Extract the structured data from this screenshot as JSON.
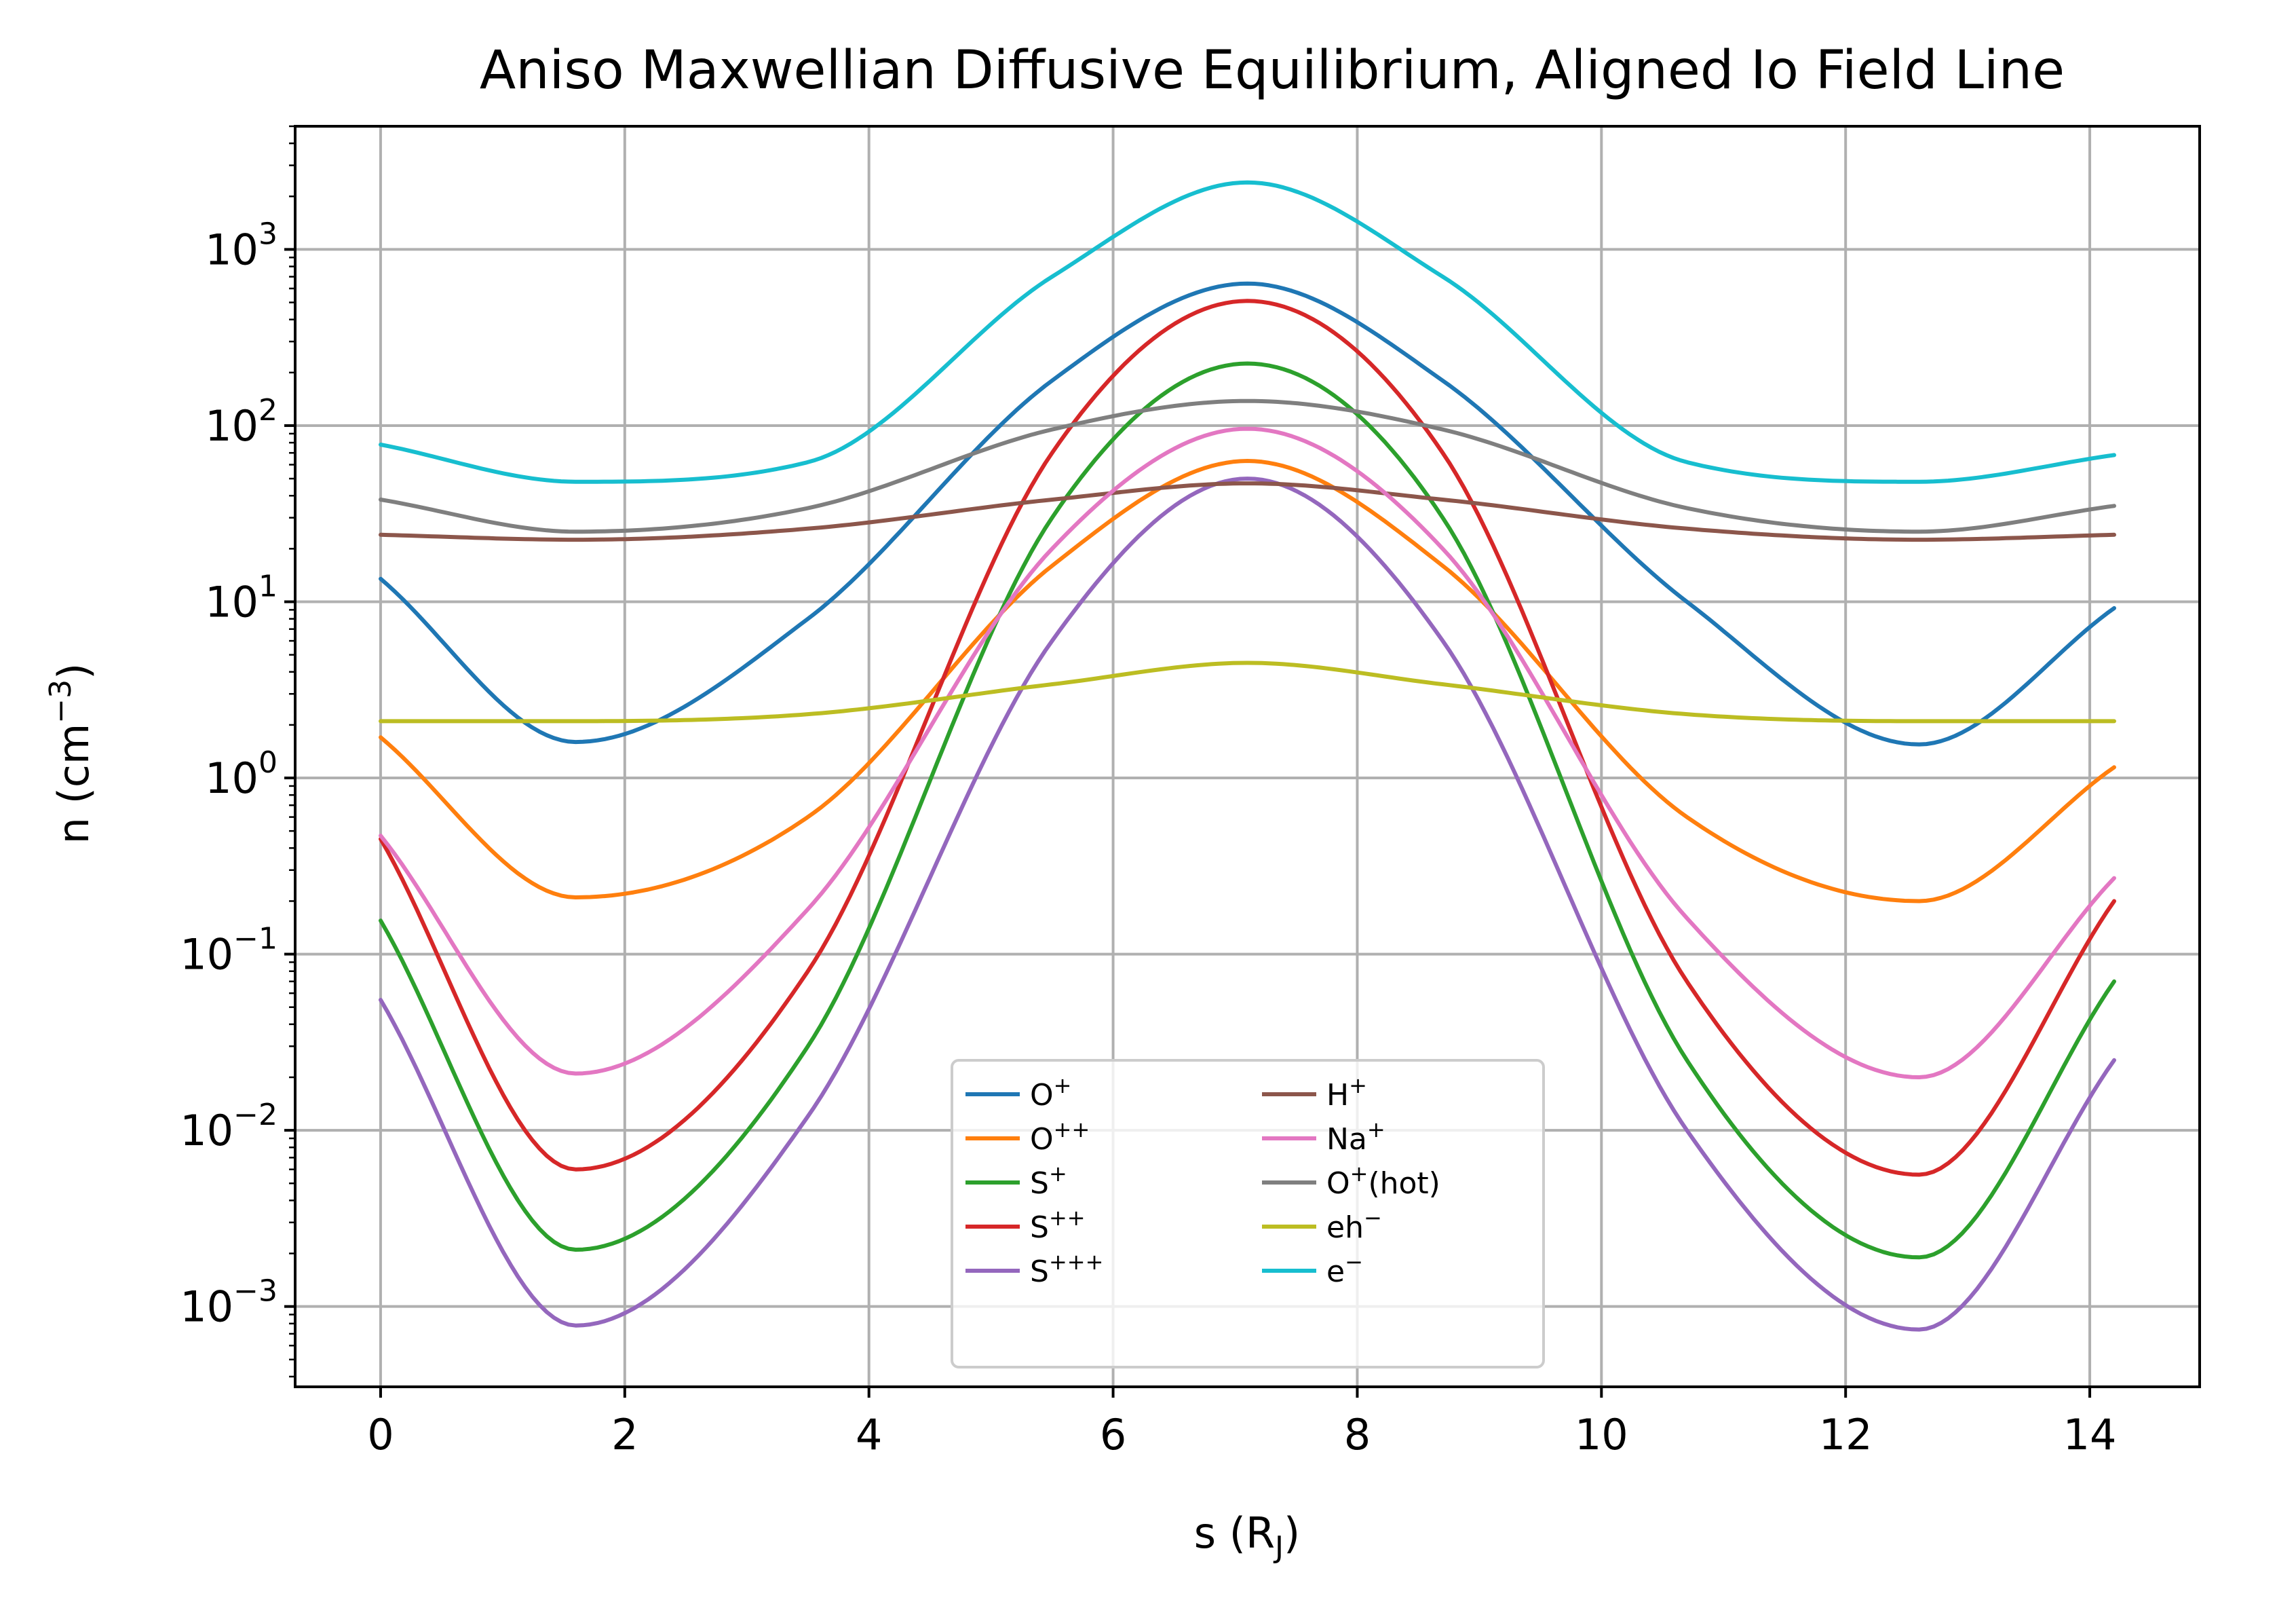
{
  "chart_data": {
    "type": "line",
    "title": "Aniso Maxwellian Diffusive Equilibrium, Aligned Io Field Line",
    "xlabel": "s (R",
    "xlabel_sub": "J",
    "xlabel_end": ")",
    "ylabel": "n (cm",
    "ylabel_sup": "−3",
    "ylabel_end": ")",
    "yscale": "log",
    "xlim": [
      -0.7,
      14.9
    ],
    "ylim": [
      0.00035,
      5000
    ],
    "grid": true,
    "legend_position": "lower center",
    "xticks": [
      {
        "value": 0,
        "label": "0"
      },
      {
        "value": 2,
        "label": "2"
      },
      {
        "value": 4,
        "label": "4"
      },
      {
        "value": 6,
        "label": "6"
      },
      {
        "value": 8,
        "label": "8"
      },
      {
        "value": 10,
        "label": "10"
      },
      {
        "value": 12,
        "label": "12"
      },
      {
        "value": 14,
        "label": "14"
      }
    ],
    "yticks": [
      {
        "value": 0.001,
        "base": "10",
        "exp": "−3"
      },
      {
        "value": 0.01,
        "base": "10",
        "exp": "−2"
      },
      {
        "value": 0.1,
        "base": "10",
        "exp": "−1"
      },
      {
        "value": 1,
        "base": "10",
        "exp": "0"
      },
      {
        "value": 10,
        "base": "10",
        "exp": "1"
      },
      {
        "value": 100,
        "base": "10",
        "exp": "2"
      },
      {
        "value": 1000,
        "base": "10",
        "exp": "3"
      }
    ],
    "x": [
      0,
      1.6,
      3.5,
      5.5,
      7.1,
      8.7,
      10.7,
      12.6,
      14.2
    ],
    "series": [
      {
        "name": "O",
        "sup": "+",
        "color": "#1f77b4",
        "values": [
          13.5,
          1.6,
          8.0,
          180,
          640,
          180,
          10,
          1.55,
          9.2
        ]
      },
      {
        "name": "O",
        "sup": "++",
        "color": "#ff7f0e",
        "values": [
          1.7,
          0.21,
          0.6,
          16,
          63,
          16,
          0.6,
          0.2,
          1.15
        ]
      },
      {
        "name": "S",
        "sup": "+",
        "color": "#2ca02c",
        "values": [
          0.155,
          0.0021,
          0.03,
          30,
          225,
          30,
          0.025,
          0.0019,
          0.07
        ]
      },
      {
        "name": "S",
        "sup": "++",
        "color": "#d62728",
        "values": [
          0.45,
          0.006,
          0.08,
          70,
          510,
          70,
          0.07,
          0.0056,
          0.2
        ]
      },
      {
        "name": "S",
        "sup": "+++",
        "color": "#9467bd",
        "values": [
          0.055,
          0.00078,
          0.012,
          6.0,
          50,
          6.0,
          0.01,
          0.00074,
          0.025
        ]
      },
      {
        "name": "H",
        "sup": "+",
        "color": "#8c564b",
        "values": [
          24,
          22.5,
          26,
          38,
          47,
          38,
          26,
          22.5,
          24
        ]
      },
      {
        "name": "Na",
        "sup": "+",
        "color": "#e377c2",
        "values": [
          0.47,
          0.021,
          0.18,
          20,
          96,
          20,
          0.16,
          0.02,
          0.27
        ]
      },
      {
        "name": "O",
        "sup": "+",
        "suffix": "(hot)",
        "color": "#7f7f7f",
        "values": [
          38,
          25,
          34,
          95,
          138,
          95,
          34,
          25,
          35
        ]
      },
      {
        "name": "eh",
        "sup": "−",
        "color": "#bcbd22",
        "values": [
          2.1,
          2.1,
          2.3,
          3.4,
          4.5,
          3.4,
          2.3,
          2.1,
          2.1
        ]
      },
      {
        "name": "e",
        "sup": "−",
        "color": "#17becf",
        "values": [
          78,
          48,
          62,
          700,
          2400,
          700,
          62,
          48,
          68
        ]
      }
    ]
  }
}
